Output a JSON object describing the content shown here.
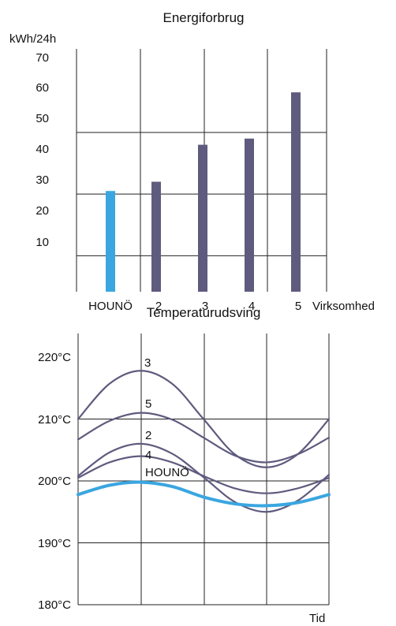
{
  "charts": {
    "energy": {
      "title": "Energiforbrug",
      "ylabel": "kWh/24h",
      "xlabel": "Virksomhed",
      "yticks": [
        "10",
        "20",
        "30",
        "40",
        "50",
        "60",
        "70"
      ]
    },
    "temperature": {
      "title": "Temperaturudsving",
      "xlabel": "Tid",
      "yticks": [
        "180°C",
        "190°C",
        "200°C",
        "210°C",
        "220°C"
      ]
    }
  },
  "chart_data": [
    {
      "type": "bar",
      "title": "Energiforbrug",
      "ylabel": "kWh/24h",
      "xlabel": "Virksomhed",
      "categories": [
        "HOUNÖ",
        "2",
        "3",
        "4",
        "5"
      ],
      "values": [
        36,
        39,
        51,
        53,
        68
      ],
      "colors": [
        "#3aa6e0",
        "#5f5b7e",
        "#5f5b7e",
        "#5f5b7e",
        "#5f5b7e"
      ],
      "ylim": [
        0,
        75
      ],
      "grid": true
    },
    {
      "type": "line",
      "title": "Temperaturudsving",
      "xlabel": "Tid",
      "ylim": [
        180,
        220
      ],
      "grid": true,
      "x": [
        0,
        0.5,
        1,
        1.5,
        2,
        2.5,
        3,
        3.5,
        4
      ],
      "series": [
        {
          "name": "3",
          "color": "#5f5b7e",
          "values": [
            210,
            215.7,
            217.8,
            215.7,
            210,
            204.3,
            202.2,
            204.3,
            210
          ]
        },
        {
          "name": "5",
          "color": "#5f5b7e",
          "values": [
            206.7,
            209.7,
            211,
            209.9,
            207,
            204.1,
            203,
            204.3,
            207
          ]
        },
        {
          "name": "2",
          "color": "#5f5b7e",
          "values": [
            200.8,
            204.6,
            206,
            204.4,
            200.6,
            196.6,
            195,
            196.8,
            201
          ]
        },
        {
          "name": "4",
          "color": "#5f5b7e",
          "values": [
            200.5,
            203,
            204,
            203,
            200.8,
            198.8,
            198,
            198.8,
            200.5
          ]
        },
        {
          "name": "HOUNÖ",
          "color": "#3aa6e0",
          "values": [
            197.8,
            199.3,
            199.8,
            199.1,
            197.4,
            196.3,
            196,
            196.5,
            197.8
          ]
        }
      ]
    }
  ]
}
